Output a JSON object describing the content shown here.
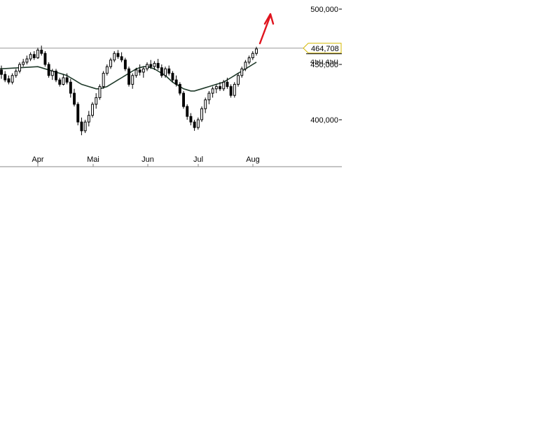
{
  "chart_data": {
    "type": "candlestick",
    "x_ticks": [
      "Apr",
      "Mai",
      "Jun",
      "Jul",
      "Aug"
    ],
    "y_ticks": [
      "500,000",
      "450,000",
      "400,000"
    ],
    "y_tick_values": [
      500000,
      450000,
      400000
    ],
    "ylim": [
      380000,
      510000
    ],
    "last_value_label": "464,708",
    "last_value": 464708,
    "hidden_label_value": 450450,
    "reference_line_value": 464708,
    "grid": false,
    "colors": {
      "candle": "#000000",
      "moving_average": "#1f3a2a",
      "reference_line": "#999999",
      "arrow": "#e0141e",
      "label_border": "#d4b800",
      "axis": "#888888"
    },
    "series": [
      {
        "name": "",
        "kind": "candles",
        "values": [
          {
            "o": 445,
            "h": 449,
            "l": 437,
            "c": 441
          },
          {
            "o": 441,
            "h": 444,
            "l": 434,
            "c": 436
          },
          {
            "o": 437,
            "h": 440,
            "l": 432,
            "c": 434
          },
          {
            "o": 434,
            "h": 442,
            "l": 432,
            "c": 440
          },
          {
            "o": 440,
            "h": 446,
            "l": 438,
            "c": 444
          },
          {
            "o": 444,
            "h": 452,
            "l": 442,
            "c": 450
          },
          {
            "o": 450,
            "h": 455,
            "l": 448,
            "c": 452
          },
          {
            "o": 452,
            "h": 458,
            "l": 450,
            "c": 455
          },
          {
            "o": 455,
            "h": 461,
            "l": 453,
            "c": 459
          },
          {
            "o": 459,
            "h": 462,
            "l": 454,
            "c": 456
          },
          {
            "o": 456,
            "h": 465,
            "l": 455,
            "c": 463
          },
          {
            "o": 463,
            "h": 467,
            "l": 458,
            "c": 460
          },
          {
            "o": 460,
            "h": 462,
            "l": 448,
            "c": 450
          },
          {
            "o": 450,
            "h": 452,
            "l": 438,
            "c": 440
          },
          {
            "o": 440,
            "h": 446,
            "l": 436,
            "c": 444
          },
          {
            "o": 444,
            "h": 446,
            "l": 434,
            "c": 436
          },
          {
            "o": 436,
            "h": 438,
            "l": 430,
            "c": 432
          },
          {
            "o": 432,
            "h": 441,
            "l": 431,
            "c": 438
          },
          {
            "o": 438,
            "h": 442,
            "l": 432,
            "c": 434
          },
          {
            "o": 434,
            "h": 437,
            "l": 420,
            "c": 424
          },
          {
            "o": 424,
            "h": 428,
            "l": 412,
            "c": 414
          },
          {
            "o": 414,
            "h": 416,
            "l": 395,
            "c": 398
          },
          {
            "o": 398,
            "h": 402,
            "l": 386,
            "c": 390
          },
          {
            "o": 390,
            "h": 400,
            "l": 388,
            "c": 398
          },
          {
            "o": 398,
            "h": 408,
            "l": 394,
            "c": 404
          },
          {
            "o": 404,
            "h": 416,
            "l": 402,
            "c": 414
          },
          {
            "o": 414,
            "h": 424,
            "l": 410,
            "c": 420
          },
          {
            "o": 420,
            "h": 432,
            "l": 418,
            "c": 430
          },
          {
            "o": 430,
            "h": 444,
            "l": 428,
            "c": 442
          },
          {
            "o": 442,
            "h": 450,
            "l": 440,
            "c": 448
          },
          {
            "o": 448,
            "h": 456,
            "l": 446,
            "c": 454
          },
          {
            "o": 454,
            "h": 462,
            "l": 452,
            "c": 460
          },
          {
            "o": 460,
            "h": 463,
            "l": 455,
            "c": 457
          },
          {
            "o": 457,
            "h": 461,
            "l": 452,
            "c": 454
          },
          {
            "o": 454,
            "h": 456,
            "l": 444,
            "c": 446
          },
          {
            "o": 446,
            "h": 448,
            "l": 430,
            "c": 432
          },
          {
            "o": 432,
            "h": 442,
            "l": 428,
            "c": 440
          },
          {
            "o": 440,
            "h": 447,
            "l": 438,
            "c": 445
          },
          {
            "o": 445,
            "h": 450,
            "l": 440,
            "c": 443
          },
          {
            "o": 443,
            "h": 448,
            "l": 438,
            "c": 446
          },
          {
            "o": 446,
            "h": 452,
            "l": 444,
            "c": 450
          },
          {
            "o": 450,
            "h": 454,
            "l": 446,
            "c": 448
          },
          {
            "o": 448,
            "h": 453,
            "l": 445,
            "c": 451
          },
          {
            "o": 451,
            "h": 455,
            "l": 445,
            "c": 447
          },
          {
            "o": 447,
            "h": 450,
            "l": 438,
            "c": 440
          },
          {
            "o": 440,
            "h": 448,
            "l": 438,
            "c": 446
          },
          {
            "o": 446,
            "h": 449,
            "l": 440,
            "c": 442
          },
          {
            "o": 442,
            "h": 444,
            "l": 434,
            "c": 436
          },
          {
            "o": 436,
            "h": 440,
            "l": 430,
            "c": 432
          },
          {
            "o": 432,
            "h": 434,
            "l": 422,
            "c": 424
          },
          {
            "o": 424,
            "h": 426,
            "l": 410,
            "c": 412
          },
          {
            "o": 412,
            "h": 414,
            "l": 400,
            "c": 403
          },
          {
            "o": 403,
            "h": 406,
            "l": 395,
            "c": 398
          },
          {
            "o": 398,
            "h": 400,
            "l": 390,
            "c": 393
          },
          {
            "o": 393,
            "h": 402,
            "l": 391,
            "c": 400
          },
          {
            "o": 400,
            "h": 412,
            "l": 398,
            "c": 410
          },
          {
            "o": 410,
            "h": 420,
            "l": 406,
            "c": 418
          },
          {
            "o": 418,
            "h": 426,
            "l": 414,
            "c": 424
          },
          {
            "o": 424,
            "h": 430,
            "l": 420,
            "c": 428
          },
          {
            "o": 428,
            "h": 432,
            "l": 424,
            "c": 430
          },
          {
            "o": 430,
            "h": 434,
            "l": 426,
            "c": 428
          },
          {
            "o": 428,
            "h": 436,
            "l": 426,
            "c": 434
          },
          {
            "o": 434,
            "h": 438,
            "l": 428,
            "c": 430
          },
          {
            "o": 430,
            "h": 432,
            "l": 420,
            "c": 422
          },
          {
            "o": 422,
            "h": 434,
            "l": 420,
            "c": 432
          },
          {
            "o": 432,
            "h": 442,
            "l": 430,
            "c": 440
          },
          {
            "o": 440,
            "h": 448,
            "l": 438,
            "c": 446
          },
          {
            "o": 446,
            "h": 454,
            "l": 444,
            "c": 452
          },
          {
            "o": 452,
            "h": 458,
            "l": 450,
            "c": 456
          },
          {
            "o": 456,
            "h": 462,
            "l": 454,
            "c": 460
          },
          {
            "o": 460,
            "h": 466,
            "l": 458,
            "c": 464
          }
        ]
      },
      {
        "name": "",
        "kind": "moving-average",
        "values": [
          448,
          447,
          446,
          445,
          444,
          443,
          442,
          441,
          440,
          438,
          436,
          434,
          432,
          431,
          430,
          429,
          428,
          428,
          429,
          430,
          432,
          434,
          436,
          438,
          440,
          442,
          444,
          446,
          447,
          448,
          448,
          447,
          446,
          444,
          442,
          440,
          437,
          434,
          432,
          430,
          428,
          427,
          426,
          426,
          427,
          428,
          429,
          430,
          431,
          432,
          433,
          434,
          436,
          438,
          440,
          442,
          444,
          446,
          448,
          450,
          452
        ]
      }
    ],
    "ma_start_index": 10
  }
}
